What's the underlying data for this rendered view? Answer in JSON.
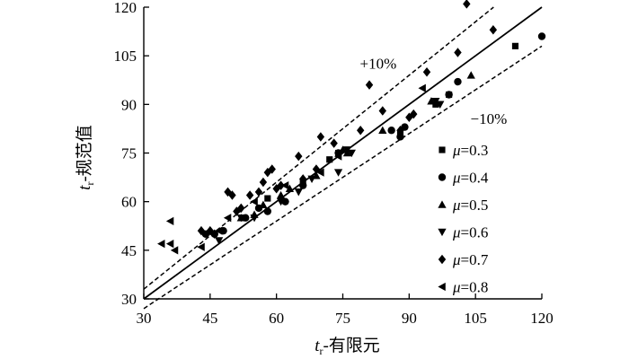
{
  "chart_data": {
    "type": "scatter",
    "xlabel": {
      "var": "t",
      "sub": "r",
      "text": "-有限元"
    },
    "ylabel": {
      "var": "t",
      "sub": "r",
      "text": "-规范值"
    },
    "xlim": [
      30,
      120
    ],
    "ylim": [
      30,
      120
    ],
    "xticks": [
      30,
      45,
      60,
      75,
      90,
      105,
      120
    ],
    "yticks": [
      30,
      45,
      60,
      75,
      90,
      105,
      120
    ],
    "grid": false,
    "legend_position": "bottom-right",
    "annotations": [
      {
        "text": "+10%",
        "x": 83,
        "y": 101
      },
      {
        "text": "−10%",
        "x": 108,
        "y": 84
      }
    ],
    "reference_lines": [
      {
        "name": "y = x",
        "slope": 1.0,
        "style": "solid"
      },
      {
        "name": "+10%",
        "slope": 1.1,
        "style": "dashed"
      },
      {
        "name": "−10%",
        "slope": 0.9,
        "style": "dashed"
      }
    ],
    "series": [
      {
        "name": "μ=0.3",
        "label_var": "μ",
        "label_val": "=0.3",
        "marker": "square",
        "points": [
          [
            114,
            108
          ],
          [
            99,
            93
          ],
          [
            96,
            90
          ],
          [
            88,
            81
          ],
          [
            74,
            75
          ],
          [
            72,
            73
          ],
          [
            66,
            66
          ],
          [
            58,
            61
          ]
        ]
      },
      {
        "name": "μ=0.4",
        "label_var": "μ",
        "label_val": "=0.4",
        "marker": "circle",
        "points": [
          [
            120,
            111
          ],
          [
            101,
            97
          ],
          [
            99,
            93
          ],
          [
            89,
            83
          ],
          [
            88,
            80
          ],
          [
            86,
            82
          ],
          [
            74,
            75
          ],
          [
            66,
            65
          ],
          [
            62,
            60
          ],
          [
            58,
            57
          ],
          [
            56,
            58
          ],
          [
            53,
            55
          ],
          [
            48,
            51
          ],
          [
            46,
            50
          ],
          [
            44,
            50
          ]
        ]
      },
      {
        "name": "μ=0.5",
        "label_var": "μ",
        "label_val": "=0.5",
        "marker": "triangle-up",
        "points": [
          [
            104,
            99
          ],
          [
            95,
            91
          ],
          [
            84,
            82
          ],
          [
            76,
            75
          ],
          [
            75,
            76
          ],
          [
            69,
            68
          ],
          [
            63,
            64
          ],
          [
            61,
            62
          ],
          [
            57,
            59
          ],
          [
            55,
            56
          ],
          [
            52,
            55
          ]
        ]
      },
      {
        "name": "μ=0.6",
        "label_var": "μ",
        "label_val": "=0.6",
        "marker": "triangle-down",
        "points": [
          [
            97,
            90
          ],
          [
            96,
            91
          ],
          [
            77,
            75
          ],
          [
            76,
            76
          ],
          [
            74,
            69
          ],
          [
            68,
            67
          ],
          [
            65,
            63
          ],
          [
            61,
            60
          ],
          [
            55,
            55
          ],
          [
            52,
            55
          ],
          [
            47,
            48
          ]
        ]
      },
      {
        "name": "μ=0.7",
        "label_var": "μ",
        "label_val": "=0.7",
        "marker": "diamond",
        "points": [
          [
            109,
            113
          ],
          [
            103,
            121
          ],
          [
            101,
            106
          ],
          [
            94,
            100
          ],
          [
            91,
            87
          ],
          [
            90,
            86
          ],
          [
            88,
            82
          ],
          [
            84,
            88
          ],
          [
            81,
            96
          ],
          [
            79,
            82
          ],
          [
            73,
            78
          ],
          [
            70,
            80
          ],
          [
            69,
            70
          ],
          [
            66,
            67
          ],
          [
            65,
            74
          ],
          [
            61,
            65
          ],
          [
            60,
            64
          ],
          [
            59,
            70
          ],
          [
            58,
            69
          ],
          [
            57,
            66
          ],
          [
            56,
            63
          ],
          [
            54,
            62
          ],
          [
            52,
            58
          ],
          [
            51,
            57
          ],
          [
            50,
            62
          ],
          [
            49,
            63
          ],
          [
            46,
            50
          ],
          [
            45,
            51
          ],
          [
            43,
            51
          ]
        ]
      },
      {
        "name": "μ=0.8",
        "label_var": "μ",
        "label_val": "=0.8",
        "marker": "triangle-left",
        "points": [
          [
            36,
            54
          ],
          [
            36,
            47
          ],
          [
            34,
            47
          ],
          [
            37,
            45
          ],
          [
            43,
            46
          ],
          [
            47,
            51
          ],
          [
            49,
            55
          ],
          [
            55,
            60
          ],
          [
            62,
            65
          ],
          [
            70,
            69
          ],
          [
            74,
            74
          ],
          [
            93,
            95
          ]
        ]
      }
    ]
  }
}
